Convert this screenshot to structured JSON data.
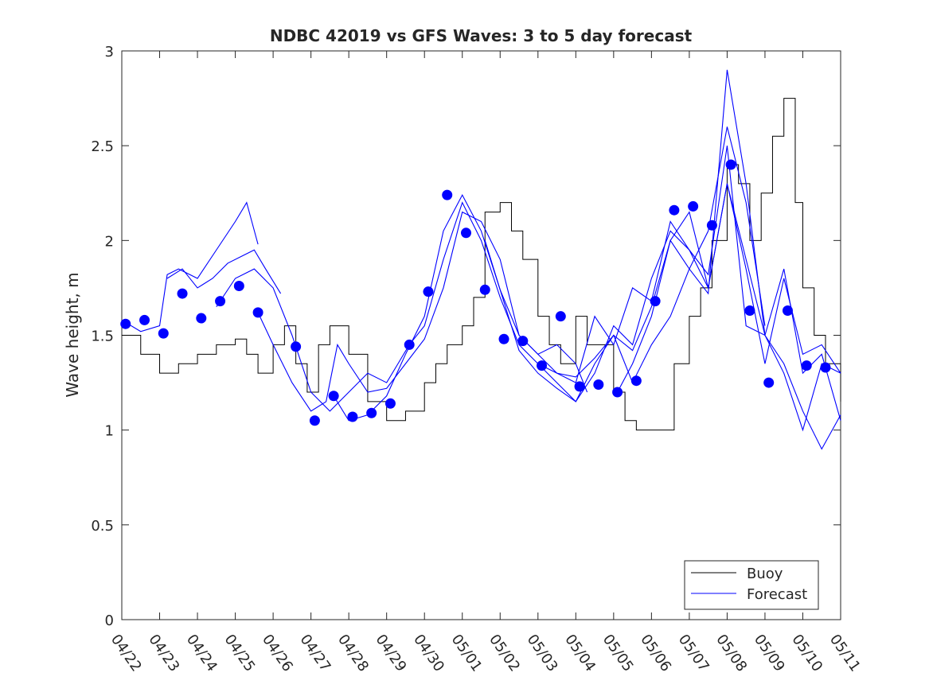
{
  "chart_data": {
    "type": "line",
    "title": "NDBC 42019 vs GFS Waves: 3 to 5 day forecast",
    "ylabel": "Wave height, m",
    "xlabel": "",
    "ylim": [
      0,
      3
    ],
    "y_ticks": [
      "0",
      "0.5",
      "1",
      "1.5",
      "2",
      "2.5",
      "3"
    ],
    "x_ticks": [
      "04/22",
      "04/23",
      "04/24",
      "04/25",
      "04/26",
      "04/27",
      "04/28",
      "04/29",
      "04/30",
      "05/01",
      "05/02",
      "05/03",
      "05/04",
      "05/05",
      "05/06",
      "05/07",
      "05/08",
      "05/09",
      "05/10",
      "05/11"
    ],
    "x_range_days": [
      0,
      19
    ],
    "grid": false,
    "legend_placement": "bottom-right",
    "legend": [
      {
        "label": "Buoy",
        "color": "#000000"
      },
      {
        "label": "Forecast",
        "color": "#0000ff"
      }
    ],
    "buoy_color": "#000000",
    "forecast_color": "#0000ff",
    "buoy": {
      "name": "Buoy",
      "x_day": [
        0,
        0.5,
        1,
        1.5,
        2,
        2.5,
        3,
        3.3,
        3.6,
        4,
        4.3,
        4.6,
        4.9,
        5.2,
        5.5,
        6,
        6.5,
        7,
        7.5,
        8,
        8.3,
        8.6,
        9,
        9.3,
        9.6,
        10,
        10.3,
        10.6,
        11,
        11.3,
        11.6,
        12,
        12.3,
        12.6,
        13,
        13.3,
        13.6,
        14,
        14.3,
        14.6,
        15,
        15.3,
        15.6,
        16,
        16.3,
        16.6,
        16.9,
        17.2,
        17.5,
        17.8,
        18,
        18.3,
        18.6,
        19
      ],
      "y": [
        1.5,
        1.4,
        1.3,
        1.35,
        1.4,
        1.45,
        1.48,
        1.4,
        1.3,
        1.45,
        1.55,
        1.35,
        1.2,
        1.45,
        1.55,
        1.4,
        1.15,
        1.05,
        1.1,
        1.25,
        1.35,
        1.45,
        1.55,
        1.7,
        2.15,
        2.2,
        2.05,
        1.9,
        1.6,
        1.45,
        1.35,
        1.6,
        1.45,
        1.45,
        1.2,
        1.05,
        1.0,
        1.0,
        1.0,
        1.35,
        1.6,
        1.75,
        2.0,
        2.4,
        2.3,
        2.0,
        2.25,
        2.55,
        2.75,
        2.2,
        1.75,
        1.5,
        1.35,
        1.15
      ]
    },
    "forecast_dots": {
      "x_day": [
        0.1,
        0.6,
        1.1,
        1.6,
        2.1,
        2.6,
        3.1,
        3.6,
        4.6,
        5.1,
        5.6,
        6.1,
        6.6,
        7.1,
        7.6,
        8.1,
        8.6,
        9.1,
        9.6,
        10.1,
        10.6,
        11.1,
        11.6,
        12.1,
        12.6,
        13.1,
        13.6,
        14.1,
        14.6,
        15.1,
        15.6,
        16.1,
        16.6,
        17.1,
        17.6,
        18.1,
        18.6
      ],
      "y": [
        1.56,
        1.58,
        1.51,
        1.72,
        1.59,
        1.68,
        1.76,
        1.62,
        1.44,
        1.05,
        1.18,
        1.07,
        1.09,
        1.14,
        1.45,
        1.73,
        2.24,
        2.04,
        1.74,
        1.48,
        1.47,
        1.34,
        1.6,
        1.23,
        1.24,
        1.2,
        1.26,
        1.68,
        2.16,
        2.18,
        2.08,
        2.4,
        1.63,
        1.25,
        1.63,
        1.34,
        1.33
      ]
    },
    "forecast_runs": [
      {
        "x_day": [
          0,
          0.5,
          1,
          1.2,
          1.5,
          2,
          2.5,
          3,
          3.3,
          3.6
        ],
        "y": [
          1.58,
          1.52,
          1.55,
          1.82,
          1.85,
          1.8,
          1.95,
          2.1,
          2.2,
          1.98
        ]
      },
      {
        "x_day": [
          1.2,
          1.6,
          2,
          2.4,
          2.8,
          3.2,
          3.5,
          3.8,
          4.2
        ],
        "y": [
          1.8,
          1.85,
          1.75,
          1.8,
          1.88,
          1.92,
          1.95,
          1.85,
          1.72
        ]
      },
      {
        "x_day": [
          2.5,
          3,
          3.5,
          4,
          4.5,
          5,
          5.5,
          6,
          6.5,
          7,
          7.3,
          7.6
        ],
        "y": [
          1.65,
          1.8,
          1.85,
          1.75,
          1.5,
          1.2,
          1.1,
          1.2,
          1.3,
          1.25,
          1.35,
          1.45
        ]
      },
      {
        "x_day": [
          3.6,
          4,
          4.5,
          5,
          5.4,
          5.7,
          6,
          6.5,
          7,
          7.5,
          8,
          8.5,
          9,
          9.5,
          10,
          10.5,
          11,
          11.5,
          12,
          12.3
        ],
        "y": [
          1.62,
          1.45,
          1.25,
          1.1,
          1.15,
          1.45,
          1.35,
          1.2,
          1.22,
          1.35,
          1.48,
          1.75,
          2.15,
          2.1,
          1.9,
          1.5,
          1.4,
          1.45,
          1.35,
          1.2
        ]
      },
      {
        "x_day": [
          5.6,
          6,
          6.5,
          7,
          7.5,
          8,
          8.5,
          9,
          9.5,
          10,
          10.5,
          11,
          11.5,
          12,
          12.5,
          13,
          13.5,
          14,
          14.5,
          15,
          15.5,
          16,
          16.5,
          17
        ],
        "y": [
          1.18,
          1.05,
          1.08,
          1.18,
          1.4,
          1.6,
          2.05,
          2.24,
          2.05,
          1.74,
          1.5,
          1.4,
          1.3,
          1.28,
          1.38,
          1.5,
          1.25,
          1.45,
          1.6,
          1.85,
          2.05,
          2.6,
          2.2,
          1.55
        ]
      },
      {
        "x_day": [
          7.6,
          8,
          8.5,
          9,
          9.5,
          10,
          10.5,
          11,
          11.5,
          12,
          12.5,
          13,
          13.5,
          14,
          14.5,
          15,
          15.5,
          16,
          16.5,
          17,
          17.5,
          18,
          18.5,
          19
        ],
        "y": [
          1.45,
          1.55,
          1.9,
          2.2,
          2.0,
          1.7,
          1.45,
          1.35,
          1.25,
          1.15,
          1.3,
          1.55,
          1.45,
          1.8,
          2.05,
          1.95,
          1.75,
          2.3,
          1.9,
          1.5,
          1.35,
          1.1,
          0.9,
          1.08
        ]
      },
      {
        "x_day": [
          9.6,
          10,
          10.5,
          11,
          11.5,
          12,
          12.5,
          13,
          13.5,
          14,
          14.5,
          15,
          15.5,
          16,
          16.5,
          17,
          17.5,
          18,
          18.5,
          19
        ],
        "y": [
          2.0,
          1.74,
          1.42,
          1.3,
          1.22,
          1.15,
          1.35,
          1.5,
          1.42,
          1.65,
          2.0,
          1.85,
          1.72,
          2.9,
          2.3,
          1.5,
          1.3,
          1.0,
          1.35,
          1.3
        ]
      },
      {
        "x_day": [
          11.1,
          11.5,
          12,
          12.5,
          13,
          13.5,
          14,
          14.5,
          15,
          15.5,
          16,
          16.5,
          17,
          17.5,
          18,
          18.5,
          19
        ],
        "y": [
          1.34,
          1.3,
          1.25,
          1.6,
          1.45,
          1.75,
          1.68,
          2.1,
          1.95,
          1.82,
          2.5,
          1.55,
          1.5,
          1.85,
          1.3,
          1.4,
          1.05
        ]
      },
      {
        "x_day": [
          13.1,
          13.5,
          14,
          14.5,
          15,
          15.5,
          16,
          16.5,
          17,
          17.5,
          18,
          18.5,
          19
        ],
        "y": [
          1.2,
          1.35,
          1.6,
          2.0,
          2.15,
          1.75,
          2.3,
          1.85,
          1.35,
          1.8,
          1.4,
          1.45,
          1.3
        ]
      }
    ]
  }
}
